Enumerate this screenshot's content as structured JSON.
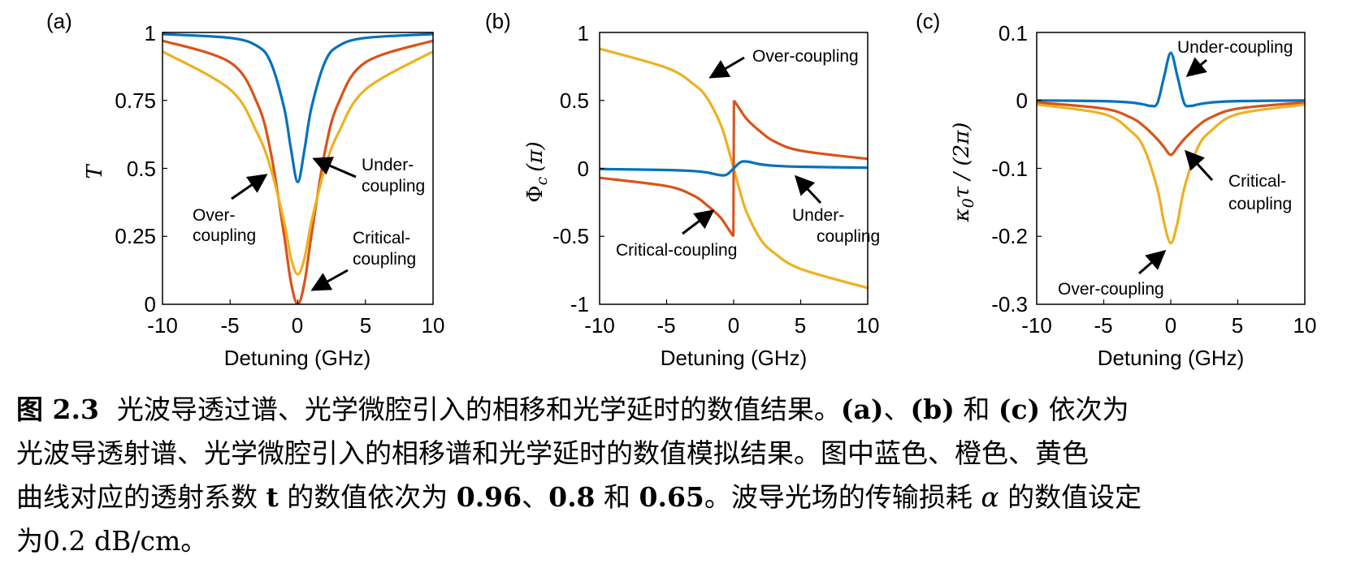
{
  "panels": [
    {
      "id": "a",
      "label": "(a)",
      "xlabel": "Detuning (GHz)",
      "ylabel": "T",
      "xticks": [
        "-10",
        "-5",
        "0",
        "5",
        "10"
      ],
      "yticks": [
        "0",
        "0.25",
        "0.5",
        "0.75",
        "1"
      ],
      "annotations": [
        {
          "lines": [
            "Under-",
            "coupling"
          ]
        },
        {
          "lines": [
            "Over-",
            "coupling"
          ]
        },
        {
          "lines": [
            "Critical-",
            "coupling"
          ]
        }
      ]
    },
    {
      "id": "b",
      "label": "(b)",
      "xlabel": "Detuning (GHz)",
      "ylabel": "Φc (π)",
      "ylabel_parts": {
        "sym": "Φ",
        "sub": "c",
        "unit": "(π)"
      },
      "xticks": [
        "-10",
        "-5",
        "0",
        "5",
        "10"
      ],
      "yticks": [
        "-1",
        "-0.5",
        "0",
        "0.5",
        "1"
      ],
      "annotations": [
        {
          "lines": [
            "Over-coupling"
          ]
        },
        {
          "lines": [
            "Under-",
            "coupling"
          ]
        },
        {
          "lines": [
            "Critical-coupling"
          ]
        }
      ]
    },
    {
      "id": "c",
      "label": "(c)",
      "xlabel": "Detuning (GHz)",
      "ylabel": "κ0τ / (2π)",
      "ylabel_parts": {
        "sym": "κ",
        "sub": "0",
        "rest": "τ / (2π)"
      },
      "xticks": [
        "-10",
        "-5",
        "0",
        "5",
        "10"
      ],
      "yticks": [
        "-0.3",
        "-0.2",
        "-0.1",
        "0",
        "0.1"
      ],
      "annotations": [
        {
          "lines": [
            "Under-coupling"
          ]
        },
        {
          "lines": [
            "Critical-",
            "coupling"
          ]
        },
        {
          "lines": [
            "Over-coupling"
          ]
        }
      ]
    }
  ],
  "colors": {
    "blue": "#0072BD",
    "orange": "#D95319",
    "yellow": "#EDB120"
  },
  "chart_data": [
    {
      "type": "line",
      "xlim": [
        -10,
        10
      ],
      "ylim": [
        0,
        1
      ],
      "series": [
        {
          "color": "blue",
          "x": [
            -10,
            -5,
            -3,
            -2,
            -1,
            -0.5,
            0,
            0.5,
            1,
            2,
            3,
            5,
            10
          ],
          "y": [
            0.994,
            0.98,
            0.95,
            0.89,
            0.72,
            0.57,
            0.45,
            0.57,
            0.72,
            0.89,
            0.95,
            0.98,
            0.994
          ]
        },
        {
          "color": "orange",
          "x": [
            -10,
            -5,
            -3,
            -2,
            -1,
            -0.5,
            0,
            0.5,
            1,
            2,
            3,
            5,
            10
          ],
          "y": [
            0.97,
            0.89,
            0.74,
            0.56,
            0.25,
            0.08,
            0,
            0.08,
            0.25,
            0.56,
            0.74,
            0.89,
            0.97
          ]
        },
        {
          "color": "yellow",
          "x": [
            -10,
            -5,
            -3,
            -2,
            -1,
            -0.5,
            0,
            0.5,
            1,
            2,
            3,
            5,
            10
          ],
          "y": [
            0.93,
            0.79,
            0.63,
            0.5,
            0.3,
            0.17,
            0.11,
            0.17,
            0.3,
            0.5,
            0.63,
            0.79,
            0.93
          ]
        }
      ]
    },
    {
      "type": "line",
      "xlim": [
        -10,
        10
      ],
      "ylim": [
        -1,
        1
      ],
      "series": [
        {
          "color": "yellow",
          "x": [
            -10,
            -5,
            -3,
            -2,
            -1,
            -0.5,
            0,
            0.5,
            1,
            2,
            3,
            5,
            10
          ],
          "y": [
            0.88,
            0.74,
            0.62,
            0.52,
            0.33,
            0.18,
            0,
            -0.18,
            -0.33,
            -0.52,
            -0.62,
            -0.74,
            -0.88
          ]
        },
        {
          "color": "orange",
          "x": [
            -10,
            -5,
            -3,
            -2,
            -1,
            -0.5,
            -0.02,
            0.02,
            0.5,
            1,
            2,
            3,
            5,
            10
          ],
          "y": [
            -0.07,
            -0.13,
            -0.2,
            -0.27,
            -0.36,
            -0.43,
            -0.5,
            0.5,
            0.43,
            0.36,
            0.27,
            0.2,
            0.13,
            0.07
          ]
        },
        {
          "color": "blue",
          "x": [
            -10,
            -5,
            -3,
            -2,
            -1,
            -0.5,
            0,
            0.5,
            1,
            2,
            3,
            5,
            10
          ],
          "y": [
            -0.005,
            -0.012,
            -0.02,
            -0.03,
            -0.05,
            -0.045,
            0,
            0.045,
            0.05,
            0.03,
            0.02,
            0.012,
            0.005
          ]
        }
      ]
    },
    {
      "type": "line",
      "xlim": [
        -10,
        10
      ],
      "ylim": [
        -0.3,
        0.1
      ],
      "series": [
        {
          "color": "blue",
          "x": [
            -10,
            -5,
            -3,
            -2,
            -1.5,
            -1,
            -0.5,
            0,
            0.5,
            1,
            1.5,
            2,
            3,
            5,
            10
          ],
          "y": [
            0,
            -0.001,
            -0.003,
            -0.006,
            -0.008,
            -0.004,
            0.035,
            0.07,
            0.035,
            -0.004,
            -0.008,
            -0.006,
            -0.003,
            -0.001,
            0
          ]
        },
        {
          "color": "orange",
          "x": [
            -10,
            -5,
            -3,
            -2,
            -1,
            -0.5,
            0,
            0.5,
            1,
            2,
            3,
            5,
            10
          ],
          "y": [
            -0.003,
            -0.012,
            -0.025,
            -0.038,
            -0.057,
            -0.069,
            -0.08,
            -0.069,
            -0.057,
            -0.038,
            -0.025,
            -0.012,
            -0.003
          ]
        },
        {
          "color": "yellow",
          "x": [
            -10,
            -5,
            -3,
            -2,
            -1,
            -0.5,
            0,
            0.5,
            1,
            2,
            3,
            5,
            10
          ],
          "y": [
            -0.006,
            -0.02,
            -0.045,
            -0.07,
            -0.13,
            -0.18,
            -0.21,
            -0.18,
            -0.13,
            -0.07,
            -0.045,
            -0.02,
            -0.006
          ]
        }
      ]
    }
  ],
  "caption": {
    "label": "图 2.3",
    "line1_text": "光波导透过谱、光学微腔引入的相移和光学延时的数值结果。",
    "line1_a": "(a)",
    "line1_sep": "、",
    "line1_b": "(b)",
    "line1_and": " 和 ",
    "line1_c": "(c)",
    "line1_end": " 依次为",
    "line2": "光波导透射谱、光学微腔引入的相移谱和光学延时的数值模拟结果。图中蓝色、橙色、黄色",
    "line3_a": "曲线对应的透射系数 ",
    "line3_t": "t",
    "line3_b": " 的数值依次为 ",
    "line3_v1": "0.96",
    "line3_s1": "、",
    "line3_v2": "0.8",
    "line3_and": " 和 ",
    "line3_v3": "0.65",
    "line3_c": "。波导光场的传输损耗 ",
    "line3_alpha": "α",
    "line3_d": " 的数值设定",
    "line4": "为0.2 dB/cm。"
  }
}
